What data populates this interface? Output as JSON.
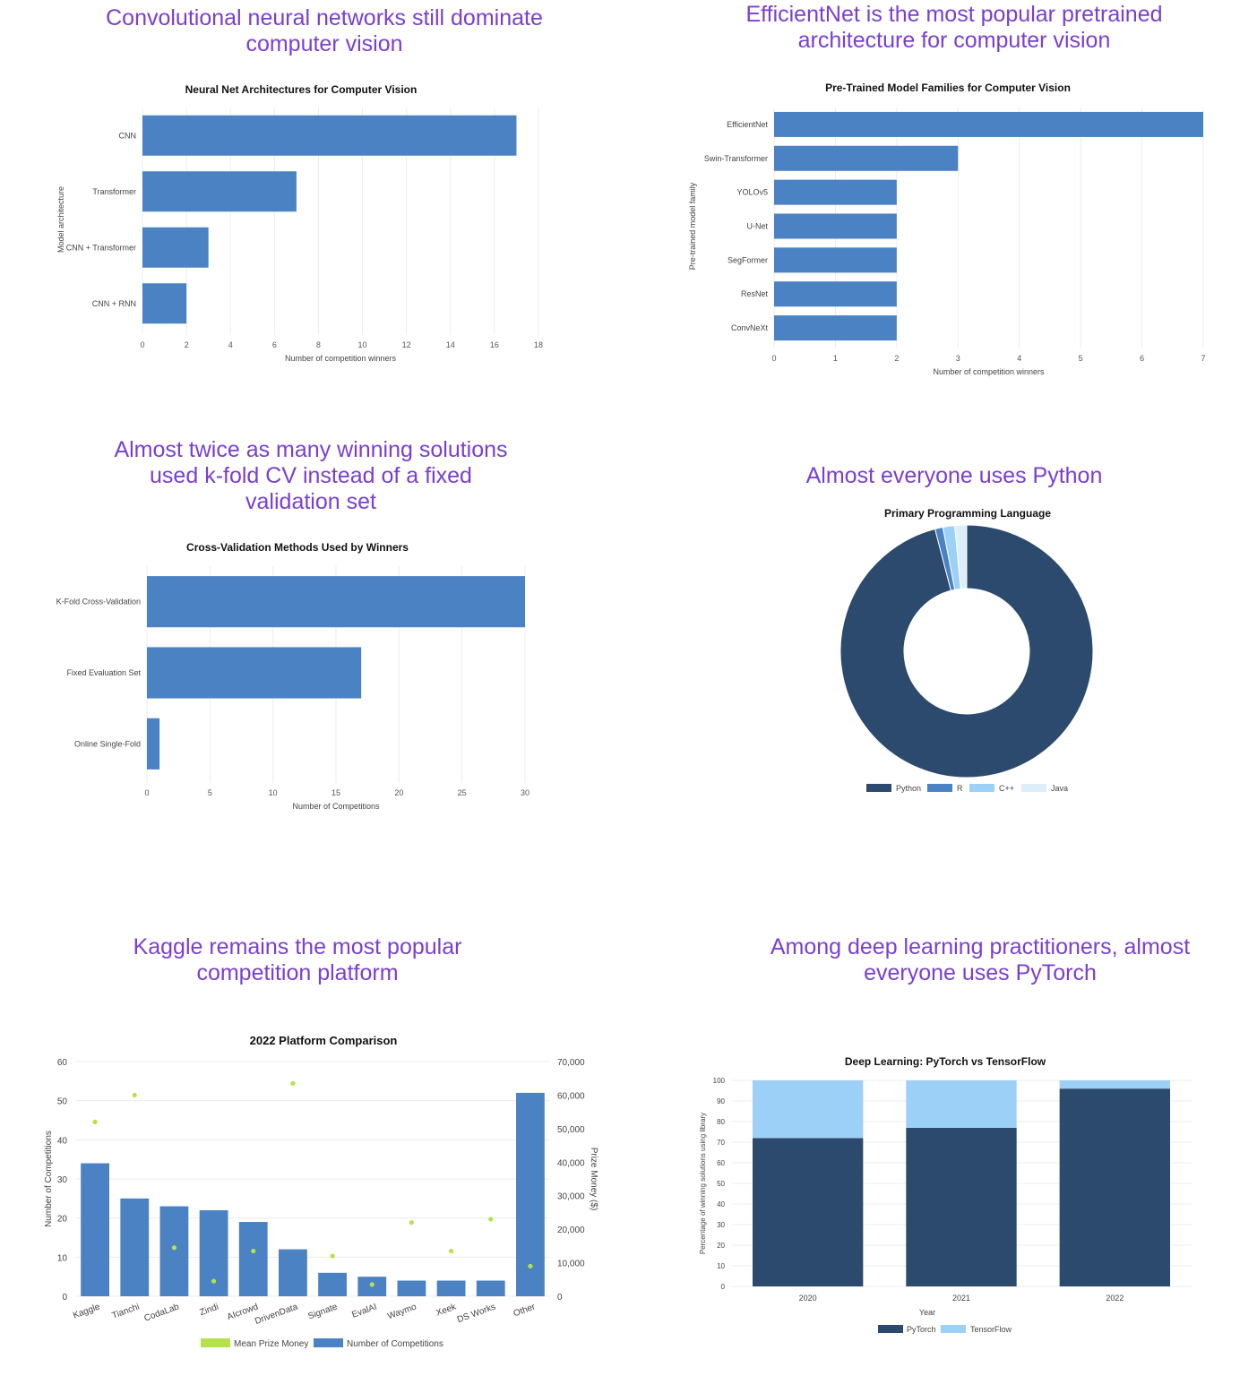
{
  "headlines": {
    "cnn": "Convolutional neural networks still dominate computer vision",
    "efficientnet": "EfficientNet is the most popular pretrained architecture for computer vision",
    "kfold": "Almost twice as many winning solutions used k-fold CV instead of a fixed validation set",
    "python": "Almost everyone uses Python",
    "kaggle": "Kaggle remains the most popular competition platform",
    "pytorch": "Among deep learning practitioners, almost everyone uses PyTorch"
  },
  "colors": {
    "bar_blue": "#4a82c3",
    "dark_navy": "#2c4a6e",
    "light_blue": "#9dd0f7",
    "pale_blue": "#dceefa",
    "green_dot": "#b5e24a",
    "grid": "#ececec",
    "headline": "#7a3fd0"
  },
  "chart_data": [
    {
      "id": "architectures",
      "type": "bar",
      "orientation": "horizontal",
      "title": "Neural Net Architectures for Computer Vision",
      "categories": [
        "CNN",
        "Transformer",
        "CNN + Transformer",
        "CNN + RNN"
      ],
      "values": [
        17,
        7,
        3,
        2
      ],
      "xlabel": "Number of competition winners",
      "ylabel": "Model architecture",
      "xlim": [
        0,
        18
      ],
      "xticks": [
        0,
        2,
        4,
        6,
        8,
        10,
        12,
        14,
        16,
        18
      ]
    },
    {
      "id": "pretrained",
      "type": "bar",
      "orientation": "horizontal",
      "title": "Pre-Trained Model Families for Computer Vision",
      "categories": [
        "EfficientNet",
        "Swin-Transformer",
        "YOLOv5",
        "U-Net",
        "SegFormer",
        "ResNet",
        "ConvNeXt"
      ],
      "values": [
        7,
        3,
        2,
        2,
        2,
        2,
        2
      ],
      "xlabel": "Number of competition winners",
      "ylabel": "Pre-trained model family",
      "xlim": [
        0,
        7
      ],
      "xticks": [
        0,
        1,
        2,
        3,
        4,
        5,
        6,
        7
      ]
    },
    {
      "id": "crossval",
      "type": "bar",
      "orientation": "horizontal",
      "title": "Cross-Validation Methods Used by Winners",
      "categories": [
        "K-Fold Cross-Validation",
        "Fixed Evaluation Set",
        "Online Single-Fold"
      ],
      "values": [
        30,
        17,
        1
      ],
      "xlabel": "Number of Competitions",
      "ylabel": "",
      "xlim": [
        0,
        30
      ],
      "xticks": [
        0,
        5,
        10,
        15,
        20,
        25,
        30
      ]
    },
    {
      "id": "language",
      "type": "pie",
      "variant": "doughnut",
      "title": "Primary Programming Language",
      "categories": [
        "Python",
        "R",
        "C++",
        "Java"
      ],
      "values": [
        95,
        1,
        1.5,
        1.5
      ],
      "colors": [
        "#2c4a6e",
        "#4a82c3",
        "#9dd0f7",
        "#dceefa"
      ],
      "legend": "bottom"
    },
    {
      "id": "platforms",
      "type": "bar",
      "title": "2022 Platform Comparison",
      "categories": [
        "Kaggle",
        "Tianchi",
        "CodaLab",
        "Zindi",
        "AIcrowd",
        "DrivenData",
        "Signate",
        "EvalAI",
        "Waymo",
        "Xeek",
        "DS Works",
        "Other"
      ],
      "series": [
        {
          "name": "Number of Competitions",
          "type": "bar",
          "axis": "left",
          "values": [
            34,
            25,
            23,
            22,
            19,
            12,
            6,
            5,
            4,
            4,
            4,
            52
          ]
        },
        {
          "name": "Mean Prize Money",
          "type": "scatter",
          "axis": "right",
          "values": [
            52000,
            60000,
            14500,
            4500,
            13500,
            63500,
            12000,
            3500,
            22000,
            13500,
            23000,
            9000
          ]
        }
      ],
      "ylabel_left": "Number of Competitions",
      "ylabel_right": "Prize Money ($)",
      "ylim_left": [
        0,
        60
      ],
      "yticks_left": [
        0,
        10,
        20,
        30,
        40,
        50,
        60
      ],
      "ylim_right": [
        0,
        70000
      ],
      "yticks_right": [
        "0",
        "10,000",
        "20,000",
        "30,000",
        "40,000",
        "50,000",
        "60,000",
        "70,000"
      ],
      "legend": [
        "Mean Prize Money",
        "Number of Competitions"
      ]
    },
    {
      "id": "frameworks",
      "type": "bar",
      "stacked": true,
      "title": "Deep Learning: PyTorch vs TensorFlow",
      "categories": [
        "2020",
        "2021",
        "2022"
      ],
      "series": [
        {
          "name": "PyTorch",
          "values": [
            72,
            77,
            96
          ]
        },
        {
          "name": "TensorFlow",
          "values": [
            28,
            23,
            4
          ]
        }
      ],
      "xlabel": "Year",
      "ylabel": "Percentage of winning solutions using library",
      "ylim": [
        0,
        100
      ],
      "yticks": [
        0,
        10,
        20,
        30,
        40,
        50,
        60,
        70,
        80,
        90,
        100
      ],
      "legend": [
        "PyTorch",
        "TensorFlow"
      ]
    }
  ]
}
